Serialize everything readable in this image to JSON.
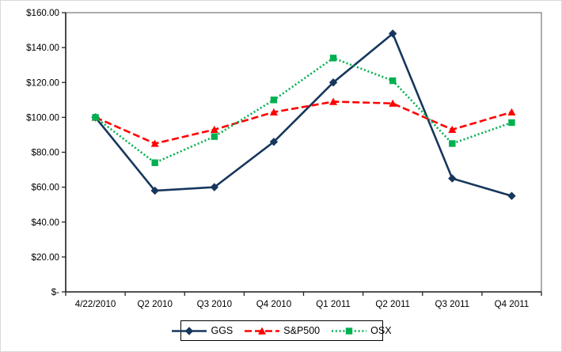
{
  "chart_data": {
    "type": "line",
    "title": "",
    "xlabel": "",
    "ylabel": "",
    "ylim": [
      0,
      160
    ],
    "ytick_step": 20,
    "ytick_labels": [
      "$160.00",
      "$140.00",
      "$120.00",
      "$100.00",
      "$80.00",
      "$60.00",
      "$40.00",
      "$20.00",
      "$-"
    ],
    "categories": [
      "4/22/2010",
      "Q2 2010",
      "Q3 2010",
      "Q4 2010",
      "Q1 2011",
      "Q2 2011",
      "Q3 2011",
      "Q4 2011"
    ],
    "series": [
      {
        "name": "GGS",
        "color": "#17375D",
        "line_style": "solid",
        "marker": "diamond",
        "values": [
          100,
          58,
          60,
          86,
          120,
          148,
          65,
          55
        ]
      },
      {
        "name": "S&P500",
        "color": "#FF0000",
        "line_style": "dashed",
        "marker": "triangle",
        "values": [
          100,
          85,
          93,
          103,
          109,
          108,
          93,
          103
        ]
      },
      {
        "name": "OSX",
        "color": "#00B050",
        "line_style": "dotted",
        "marker": "square",
        "values": [
          100,
          74,
          89,
          110,
          134,
          121,
          85,
          97
        ]
      }
    ],
    "legend_position": "bottom",
    "grid": false,
    "plot_border_color": "#7F7F7F",
    "axis_color": "#262626",
    "text_color": "#000000"
  }
}
